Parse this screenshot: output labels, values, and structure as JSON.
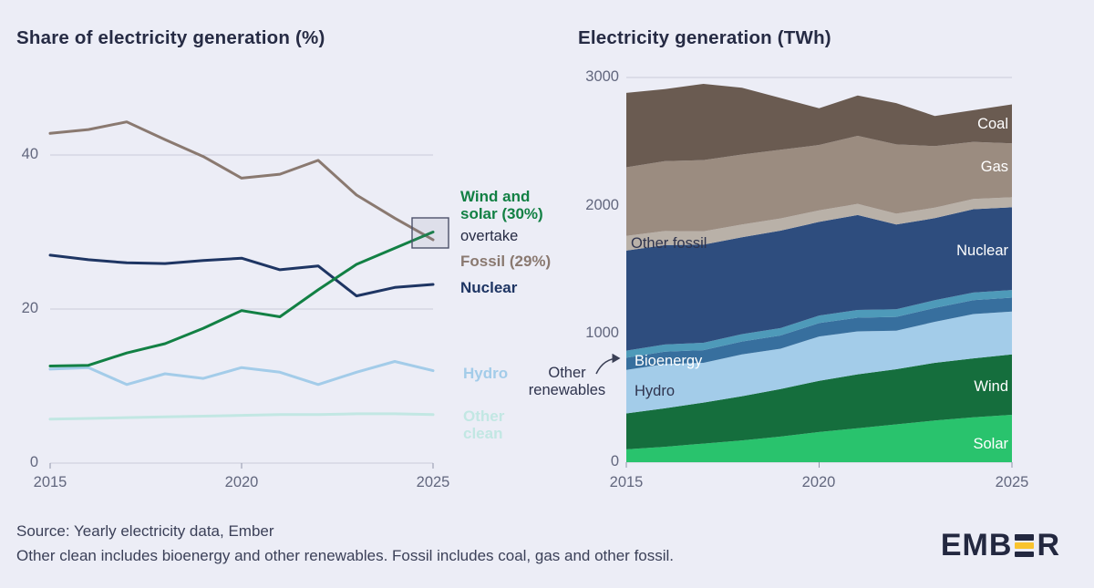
{
  "theme": {
    "background": "#ecedf6",
    "text_dark": "#262b44",
    "text_gray": "#62677e",
    "accent_yellow": "#f9c32e",
    "logo_color": "#232840"
  },
  "chart_data": [
    {
      "type": "line",
      "title": "Share of electricity generation (%)",
      "unit": "%",
      "years": [
        2015,
        2016,
        2017,
        2018,
        2019,
        2020,
        2021,
        2022,
        2023,
        2024,
        2025
      ],
      "x_ticks": [
        "2015",
        "2020",
        "2025"
      ],
      "x_tick_years": [
        2015,
        2020,
        2025
      ],
      "y_ticks": [
        "0",
        "20",
        "40"
      ],
      "grid_values": [
        0,
        20,
        40
      ],
      "ylim": [
        0,
        50
      ],
      "grid": true,
      "legend_position": "inline-labels-right",
      "series": [
        {
          "id": "fossil",
          "name": "Fossil",
          "color": "#8a7970",
          "values": [
            42.8,
            43.3,
            44.3,
            42.0,
            39.8,
            37.0,
            37.5,
            39.3,
            34.8,
            31.8,
            29.0
          ]
        },
        {
          "id": "nuclear",
          "name": "Nuclear",
          "color": "#1e3563",
          "values": [
            27.0,
            26.4,
            26.0,
            25.9,
            26.3,
            26.6,
            25.1,
            25.6,
            21.7,
            22.8,
            23.2
          ]
        },
        {
          "id": "hydro",
          "name": "Hydro",
          "color": "#a3cce9",
          "values": [
            12.2,
            12.4,
            10.2,
            11.6,
            11.0,
            12.4,
            11.8,
            10.2,
            11.8,
            13.2,
            12.0
          ]
        },
        {
          "id": "other_clean",
          "name": "Other clean",
          "color": "#c2e7e3",
          "values": [
            5.7,
            5.8,
            5.9,
            6.0,
            6.1,
            6.2,
            6.3,
            6.3,
            6.4,
            6.4,
            6.3
          ]
        },
        {
          "id": "wind_solar",
          "name": "Wind and solar",
          "color": "#128044",
          "values": [
            12.6,
            12.7,
            14.3,
            15.5,
            17.5,
            19.8,
            19.0,
            22.5,
            25.8,
            27.9,
            30.0
          ]
        }
      ],
      "labels": {
        "wind_solar": "Wind and solar (30%)",
        "overtake": "overtake",
        "fossil": "Fossil (29%)",
        "nuclear": "Nuclear",
        "hydro": "Hydro",
        "other_clean": "Other clean"
      }
    },
    {
      "type": "area",
      "title": "Electricity generation (TWh)",
      "unit": "TWh",
      "years": [
        2015,
        2016,
        2017,
        2018,
        2019,
        2020,
        2021,
        2022,
        2023,
        2024,
        2025
      ],
      "x_ticks": [
        "2015",
        "2020",
        "2025"
      ],
      "x_tick_years": [
        2015,
        2020,
        2025
      ],
      "y_ticks": [
        "0",
        "1000",
        "2000",
        "3000"
      ],
      "grid_values": [
        0,
        1000,
        2000,
        3000
      ],
      "ylim": [
        0,
        3000
      ],
      "grid": true,
      "stacked": true,
      "series": [
        {
          "id": "solar",
          "name": "Solar",
          "color": "#29c36d",
          "values": [
            100,
            120,
            145,
            170,
            200,
            235,
            265,
            295,
            325,
            350,
            370
          ]
        },
        {
          "id": "wind",
          "name": "Wind",
          "color": "#156e3d",
          "values": [
            280,
            300,
            320,
            345,
            370,
            400,
            420,
            430,
            450,
            460,
            470
          ]
        },
        {
          "id": "hydro",
          "name": "Hydro",
          "color": "#a3cce9",
          "values": [
            340,
            345,
            310,
            325,
            315,
            345,
            335,
            300,
            320,
            345,
            335
          ]
        },
        {
          "id": "bioenergy",
          "name": "Bioenergy",
          "color": "#376f9e",
          "values": [
            95,
            97,
            99,
            101,
            103,
            105,
            107,
            108,
            108,
            108,
            108
          ]
        },
        {
          "id": "other_renewables",
          "name": "Other renewables",
          "color": "#4e9ab9",
          "values": [
            55,
            56,
            57,
            58,
            58,
            59,
            60,
            60,
            60,
            60,
            60
          ]
        },
        {
          "id": "nuclear",
          "name": "Nuclear",
          "color": "#2e4d7e",
          "values": [
            780,
            775,
            765,
            755,
            760,
            730,
            740,
            660,
            640,
            650,
            645
          ]
        },
        {
          "id": "other_fossil",
          "name": "Other fossil",
          "color": "#b9b1a8",
          "values": [
            115,
            110,
            105,
            100,
            95,
            90,
            88,
            85,
            82,
            80,
            78
          ]
        },
        {
          "id": "gas",
          "name": "Gas",
          "color": "#9b8c80",
          "values": [
            535,
            545,
            555,
            545,
            535,
            510,
            530,
            540,
            480,
            445,
            420
          ]
        },
        {
          "id": "coal",
          "name": "Coal",
          "color": "#6a5b51",
          "values": [
            580,
            562,
            594,
            521,
            404,
            286,
            315,
            322,
            235,
            247,
            304
          ]
        }
      ],
      "labels": {
        "coal": "Coal",
        "gas": "Gas",
        "nuclear": "Nuclear",
        "other_fossil": "Other fossil",
        "bioenergy": "Bioenergy",
        "hydro": "Hydro",
        "wind": "Wind",
        "solar": "Solar",
        "other_renewables": "Other renewables"
      }
    }
  ],
  "footer": {
    "source": "Source: Yearly electricity data, Ember",
    "note": "Other clean includes bioenergy and other renewables. Fossil includes coal, gas and other fossil."
  },
  "logo": {
    "prefix": "EMB",
    "suffix": "R",
    "alt": "EMBER"
  }
}
